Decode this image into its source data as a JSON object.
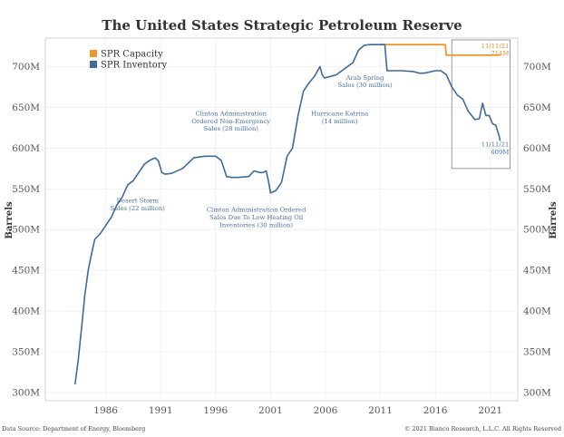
{
  "chart_data": {
    "type": "line",
    "title": "The United States Strategic Petroleum Reserve",
    "ylabel_left": "Barrels",
    "ylabel_right": "Barrels",
    "ylim": [
      290,
      735
    ],
    "xlim": [
      1980.5,
      2023.5
    ],
    "y_ticks": [
      300,
      350,
      400,
      450,
      500,
      550,
      600,
      650,
      700
    ],
    "y_tick_labels": [
      "300M",
      "350M",
      "400M",
      "450M",
      "500M",
      "550M",
      "600M",
      "650M",
      "700M"
    ],
    "x_ticks": [
      1986,
      1991,
      1996,
      2001,
      2006,
      2011,
      2016,
      2021
    ],
    "x_tick_labels": [
      "1986",
      "1991",
      "1996",
      "2001",
      "2006",
      "2011",
      "2016",
      "2021"
    ],
    "grid": true,
    "legend_position": "top-left",
    "series": [
      {
        "name": "SPR Capacity",
        "color": "#f0962b",
        "x": [
          2011.0,
          2016.9,
          2017.0,
          2021.9
        ],
        "y": [
          727,
          727,
          714,
          714
        ]
      },
      {
        "name": "SPR Inventory",
        "color": "#3f6a9a",
        "x": [
          1983.2,
          1983.5,
          1983.8,
          1984.1,
          1984.4,
          1984.7,
          1985.0,
          1985.5,
          1986.0,
          1986.5,
          1987.0,
          1987.5,
          1988.0,
          1988.5,
          1989.0,
          1989.5,
          1990.0,
          1990.5,
          1990.8,
          1991.1,
          1991.4,
          1992.0,
          1993.0,
          1994.0,
          1995.0,
          1996.0,
          1996.5,
          1997.0,
          1997.5,
          1998.0,
          1999.0,
          1999.5,
          2000.0,
          2000.3,
          2000.6,
          2000.8,
          2001.0,
          2001.5,
          2002.0,
          2002.5,
          2003.0,
          2003.5,
          2004.0,
          2004.5,
          2005.0,
          2005.5,
          2005.7,
          2005.9,
          2006.5,
          2007.0,
          2007.5,
          2008.0,
          2008.5,
          2009.0,
          2009.5,
          2010.0,
          2010.5,
          2011.0,
          2011.4,
          2011.6,
          2012.0,
          2013.0,
          2014.0,
          2014.5,
          2015.0,
          2016.0,
          2016.5,
          2017.0,
          2017.5,
          2018.0,
          2018.5,
          2019.0,
          2019.3,
          2019.6,
          2020.0,
          2020.3,
          2020.6,
          2020.9,
          2021.2,
          2021.5,
          2021.8,
          2021.9
        ],
        "y": [
          310,
          340,
          380,
          420,
          450,
          470,
          488,
          495,
          505,
          515,
          530,
          540,
          555,
          560,
          570,
          580,
          585,
          588,
          584,
          570,
          568,
          569,
          575,
          588,
          590,
          590,
          585,
          565,
          564,
          564,
          565,
          572,
          570,
          570,
          572,
          560,
          545,
          548,
          558,
          590,
          600,
          640,
          670,
          680,
          688,
          700,
          690,
          686,
          688,
          690,
          695,
          700,
          705,
          720,
          726,
          727,
          727,
          727,
          727,
          695,
          695,
          695,
          694,
          692,
          692,
          695,
          695,
          690,
          675,
          665,
          660,
          645,
          640,
          635,
          636,
          655,
          640,
          640,
          630,
          628,
          615,
          609
        ]
      }
    ],
    "annotations": [
      {
        "text": [
          "Desert Storm",
          "Sales (22 million)"
        ],
        "x": 1988.9,
        "y": 533
      },
      {
        "text": [
          "Clinton Administration",
          "Ordered Non-Emergency",
          "Sales (28 million)"
        ],
        "x": 1997.4,
        "y": 640
      },
      {
        "text": [
          "Clinton Administration Ordered",
          "Sales Due To Low Heating Oil",
          "Inventories (30 million)"
        ],
        "x": 1999.7,
        "y": 522
      },
      {
        "text": [
          "Hurricane Katrina",
          "(14 million)"
        ],
        "x": 2007.3,
        "y": 640
      },
      {
        "text": [
          "Arab Spring",
          "Sales (30 million)"
        ],
        "x": 2009.6,
        "y": 684
      }
    ],
    "capacity_label": [
      "11/11/21",
      "714M"
    ],
    "inventory_label": [
      "11/11/21",
      "609M"
    ]
  },
  "footer": {
    "source": "Data Source: Department of Energy, Bloomberg",
    "copyright": "© 2021 Bianco Research, L.L.C. All Rights Reserved"
  }
}
